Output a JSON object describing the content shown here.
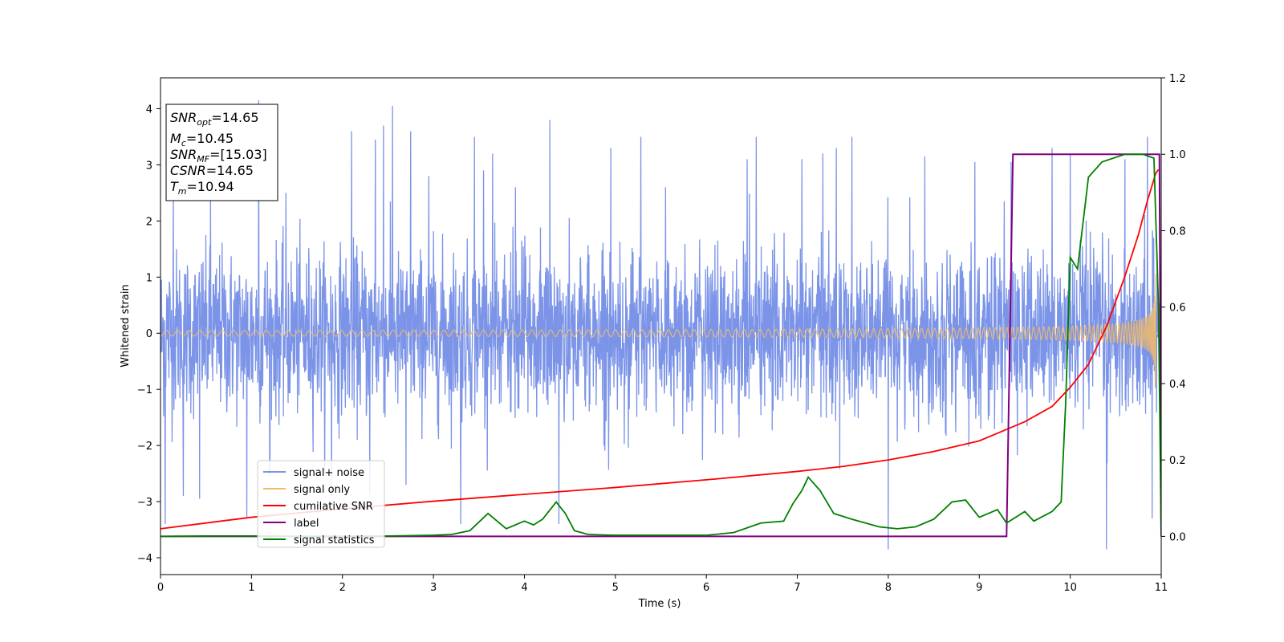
{
  "chart_data": {
    "type": "line",
    "xlabel": "Time (s)",
    "ylabel": "Whitened strain",
    "xlim": [
      0,
      11
    ],
    "ylim": [
      -4.3,
      4.55
    ],
    "y2lim": [
      -0.1,
      1.2
    ],
    "x_ticks": [
      "0",
      "1",
      "2",
      "3",
      "4",
      "5",
      "6",
      "7",
      "8",
      "9",
      "10",
      "11"
    ],
    "y_ticks": [
      "−4",
      "−3",
      "−2",
      "−1",
      "0",
      "1",
      "2",
      "3",
      "4"
    ],
    "y2_ticks": [
      "0.0",
      "0.2",
      "0.4",
      "0.6",
      "0.8",
      "1.0",
      "1.2"
    ],
    "grid": false,
    "legend_position": "lower-left",
    "info_box": {
      "snr_opt": {
        "sym": "SNR",
        "sub": "opt",
        "val": "=14.65"
      },
      "mc": {
        "sym": "M",
        "sub": "c",
        "val": "=10.45"
      },
      "snr_mf": {
        "sym": "SNR",
        "sub": "MF",
        "val": "=[15.03]"
      },
      "csnr": {
        "sym": "CSNR",
        "val": "=14.65"
      },
      "tm": {
        "sym": "T",
        "sub": "m",
        "val": "=10.94"
      }
    },
    "series": [
      {
        "name": "signal+ noise",
        "axis": "left",
        "color": "#7b94e8",
        "envelope_std": 0.72,
        "peaks": [
          [
            0.05,
            -3.4
          ],
          [
            0.14,
            2.6
          ],
          [
            0.25,
            -2.9
          ],
          [
            0.43,
            -2.95
          ],
          [
            0.55,
            2.6
          ],
          [
            0.95,
            -3.3
          ],
          [
            1.08,
            4.15
          ],
          [
            1.2,
            -2.5
          ],
          [
            1.38,
            2.5
          ],
          [
            1.88,
            -2.9
          ],
          [
            2.1,
            3.6
          ],
          [
            2.3,
            -2.85
          ],
          [
            2.36,
            3.45
          ],
          [
            2.45,
            3.7
          ],
          [
            2.55,
            4.05
          ],
          [
            2.7,
            -2.7
          ],
          [
            2.75,
            3.6
          ],
          [
            2.95,
            2.8
          ],
          [
            3.3,
            -3.4
          ],
          [
            3.45,
            3.5
          ],
          [
            3.55,
            2.9
          ],
          [
            3.65,
            3.2
          ],
          [
            3.9,
            2.6
          ],
          [
            4.28,
            3.8
          ],
          [
            4.38,
            -3.4
          ],
          [
            4.95,
            3.3
          ],
          [
            5.28,
            3.5
          ],
          [
            5.55,
            2.6
          ],
          [
            6.45,
            3.1
          ],
          [
            6.55,
            3.5
          ],
          [
            7.05,
            3.1
          ],
          [
            7.28,
            3.2
          ],
          [
            7.43,
            3.3
          ],
          [
            7.6,
            3.5
          ],
          [
            8.0,
            -3.85
          ],
          [
            8.4,
            3.15
          ],
          [
            8.95,
            3.05
          ],
          [
            9.35,
            3.05
          ],
          [
            9.8,
            3.3
          ],
          [
            10.0,
            3.2
          ],
          [
            10.4,
            -3.85
          ],
          [
            10.6,
            3.1
          ],
          [
            10.85,
            3.5
          ],
          [
            10.9,
            -3.3
          ]
        ]
      },
      {
        "name": "signal only",
        "axis": "left",
        "color": "#f5bc66",
        "chirp": {
          "t_merge": 10.94,
          "amp_start": 0.05,
          "amp_end": 2.55,
          "freq_start_hz": 8.0,
          "tau_max": 11.0
        }
      },
      {
        "name": "cumilative SNR",
        "axis": "right",
        "color": "#ff0000",
        "x": [
          0,
          1,
          2,
          3,
          4,
          5,
          6,
          7,
          7.5,
          8,
          8.5,
          9,
          9.5,
          9.8,
          10,
          10.2,
          10.4,
          10.6,
          10.75,
          10.85,
          10.94,
          10.97
        ],
        "values": [
          0.02,
          0.05,
          0.072,
          0.092,
          0.11,
          0.128,
          0.148,
          0.17,
          0.183,
          0.2,
          0.222,
          0.25,
          0.3,
          0.34,
          0.39,
          0.45,
          0.55,
          0.68,
          0.79,
          0.88,
          0.95,
          0.96
        ]
      },
      {
        "name": "label",
        "axis": "right",
        "color": "#800080",
        "x": [
          0,
          9.3,
          9.37,
          10.98,
          11
        ],
        "values": [
          0,
          0,
          1,
          1,
          0
        ]
      },
      {
        "name": "signal statistics",
        "axis": "right",
        "color": "#008000",
        "x": [
          0,
          0.5,
          1,
          1.5,
          2,
          2.5,
          3,
          3.2,
          3.4,
          3.6,
          3.8,
          4.0,
          4.1,
          4.2,
          4.35,
          4.45,
          4.55,
          4.7,
          5.0,
          5.5,
          6.0,
          6.3,
          6.6,
          6.85,
          6.95,
          7.05,
          7.12,
          7.25,
          7.4,
          7.6,
          7.9,
          8.1,
          8.3,
          8.5,
          8.7,
          8.85,
          9.0,
          9.2,
          9.3,
          9.5,
          9.6,
          9.8,
          9.9,
          9.95,
          10.0,
          10.08,
          10.2,
          10.35,
          10.6,
          10.8,
          10.92,
          10.97,
          11.0
        ],
        "values": [
          0,
          0.001,
          0.001,
          0.0,
          0.0,
          0.001,
          0.003,
          0.005,
          0.015,
          0.06,
          0.02,
          0.04,
          0.03,
          0.045,
          0.09,
          0.06,
          0.015,
          0.005,
          0.003,
          0.003,
          0.003,
          0.01,
          0.035,
          0.04,
          0.085,
          0.12,
          0.155,
          0.12,
          0.06,
          0.045,
          0.025,
          0.02,
          0.025,
          0.045,
          0.09,
          0.095,
          0.05,
          0.07,
          0.035,
          0.065,
          0.04,
          0.065,
          0.09,
          0.35,
          0.73,
          0.7,
          0.94,
          0.98,
          1.0,
          1.0,
          0.99,
          0.6,
          0.0
        ]
      }
    ]
  }
}
